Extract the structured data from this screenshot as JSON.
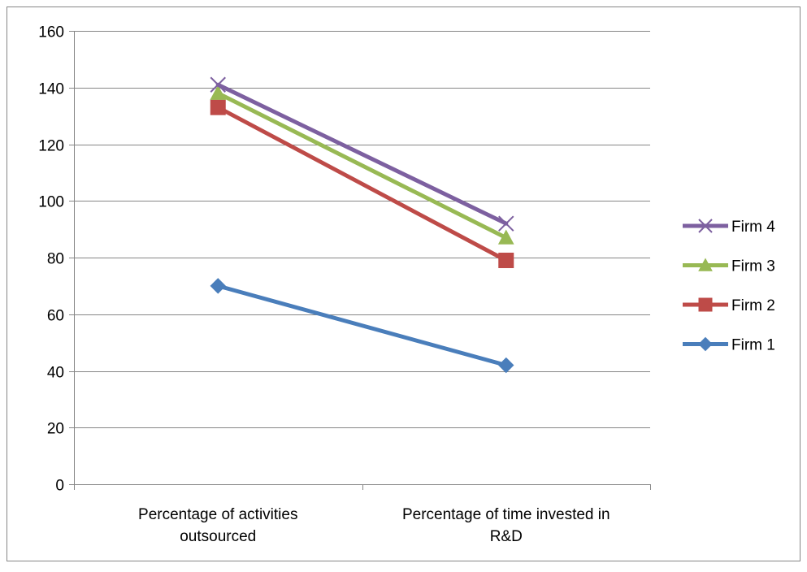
{
  "chart_data": {
    "type": "line",
    "title": "",
    "xlabel": "",
    "ylabel": "",
    "categories": [
      [
        "Percentage of activities",
        "outsourced"
      ],
      [
        "Percentage of time invested in",
        "R&D"
      ]
    ],
    "ylim": [
      0,
      160
    ],
    "yticks": [
      "0",
      "20",
      "40",
      "60",
      "80",
      "100",
      "120",
      "140",
      "160"
    ],
    "grid": "horizontal",
    "legend_position": "right",
    "series": [
      {
        "name": "Firm 1",
        "values": [
          70,
          42
        ],
        "color": "#4a7ebb",
        "marker": "diamond"
      },
      {
        "name": "Firm 2",
        "values": [
          133,
          79
        ],
        "color": "#be4b48",
        "marker": "square"
      },
      {
        "name": "Firm 3",
        "values": [
          138,
          87
        ],
        "color": "#98b954",
        "marker": "triangle"
      },
      {
        "name": "Firm 4",
        "values": [
          141,
          92
        ],
        "color": "#7d60a0",
        "marker": "x"
      }
    ],
    "legend_order": [
      "Firm 4",
      "Firm 3",
      "Firm 2",
      "Firm 1"
    ]
  }
}
